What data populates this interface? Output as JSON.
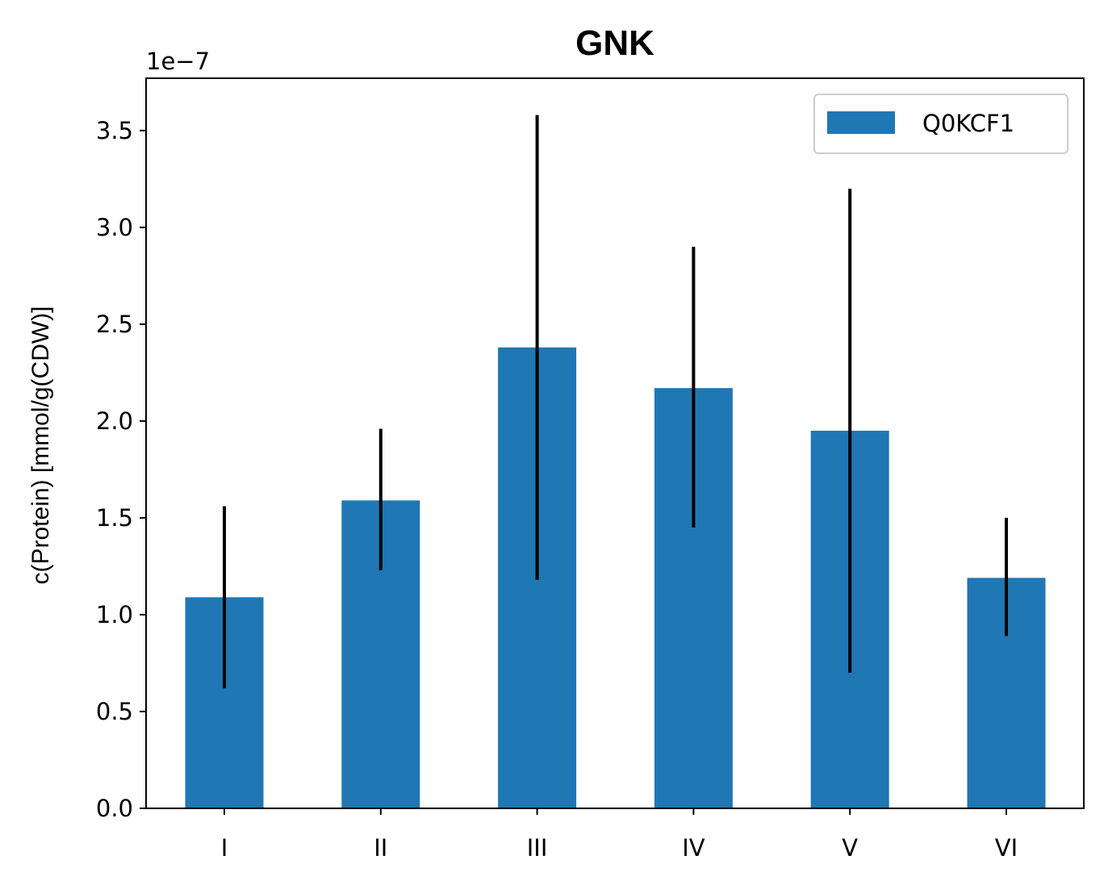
{
  "chart_data": {
    "type": "bar",
    "title": "GNK",
    "xlabel": "",
    "ylabel": "c(Protein) [mmol/g(CDW)]",
    "offset_text": "1e−7",
    "categories": [
      "I",
      "II",
      "III",
      "IV",
      "V",
      "VI"
    ],
    "series": [
      {
        "name": "Q0KCF1",
        "color": "#1f77b4",
        "values": [
          1.09,
          1.59,
          2.38,
          2.17,
          1.95,
          1.19
        ],
        "error_low": [
          0.62,
          1.23,
          1.18,
          1.45,
          0.7,
          0.89
        ],
        "error_high": [
          1.56,
          1.96,
          3.58,
          2.9,
          3.2,
          1.5
        ]
      }
    ],
    "ylim": [
      0,
      3.77
    ],
    "yticks": [
      0.0,
      0.5,
      1.0,
      1.5,
      2.0,
      2.5,
      3.0,
      3.5
    ],
    "ytick_labels": [
      "0.0",
      "0.5",
      "1.0",
      "1.5",
      "2.0",
      "2.5",
      "3.0",
      "3.5"
    ],
    "grid": false,
    "legend_position": "top-right",
    "error_bar_color": "#000000"
  }
}
